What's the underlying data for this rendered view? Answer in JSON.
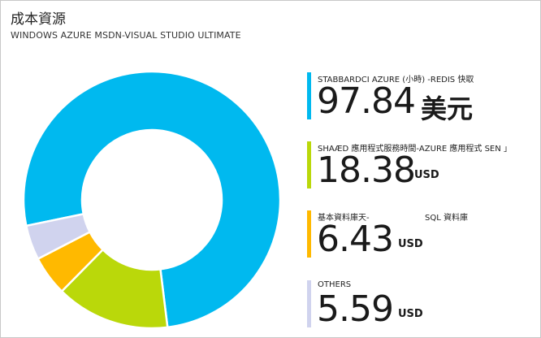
{
  "tile": {
    "title": "成本資源",
    "subtitle": "WINDOWS AZURE MSDN-VISUAL STUDIO ULTIMATE"
  },
  "legend": [
    {
      "label": "STABBARDCI AZURE (小時) -REDIS 快取",
      "label2": "",
      "value": "97.84",
      "unit": "美元",
      "color": "#00b9ef"
    },
    {
      "label": "SHAÆD 應用程式服務時間-AZURE 應用程式 SEN 」",
      "label2": "",
      "value": "18.38",
      "unit": "USD",
      "color": "#bad80a"
    },
    {
      "label": "基本資料庫天-",
      "label2": "SQL 資料庫",
      "value": "6.43",
      "unit": "USD",
      "color": "#ffb900"
    },
    {
      "label": "OTHERS",
      "label2": "",
      "value": "5.59",
      "unit": "USD",
      "color": "#d0d3ee"
    }
  ],
  "donut": {
    "values": [
      97.84,
      18.38,
      6.43,
      5.59
    ],
    "colors": [
      "#00b9ef",
      "#bad80a",
      "#ffb900",
      "#d0d3ee"
    ]
  }
}
